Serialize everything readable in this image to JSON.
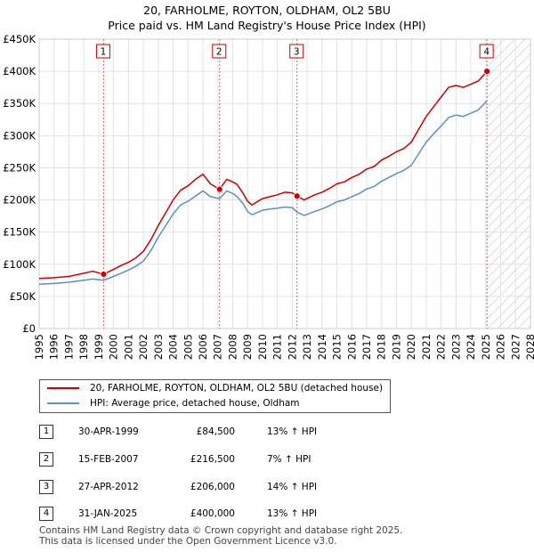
{
  "title_line1": "20, FARHOLME, ROYTON, OLDHAM, OL2 5BU",
  "title_line2": "Price paid vs. HM Land Registry's House Price Index (HPI)",
  "colors": {
    "property": "#cc0000",
    "hpi": "#5b8fc9",
    "grid": "#e3e3e3"
  },
  "chart_data": {
    "type": "line",
    "xlim": [
      1995,
      2028
    ],
    "ylim": [
      0,
      450000
    ],
    "x_ticks": [
      "1995",
      "1996",
      "1997",
      "1998",
      "1999",
      "2000",
      "2001",
      "2002",
      "2003",
      "2004",
      "2005",
      "2006",
      "2007",
      "2008",
      "2009",
      "2010",
      "2011",
      "2012",
      "2013",
      "2014",
      "2015",
      "2016",
      "2017",
      "2018",
      "2019",
      "2020",
      "2021",
      "2022",
      "2023",
      "2024",
      "2025",
      "2026",
      "2027",
      "2028"
    ],
    "y_ticks": [
      {
        "value": 0,
        "label": "£0"
      },
      {
        "value": 50000,
        "label": "£50K"
      },
      {
        "value": 100000,
        "label": "£100K"
      },
      {
        "value": 150000,
        "label": "£150K"
      },
      {
        "value": 200000,
        "label": "£200K"
      },
      {
        "value": 250000,
        "label": "£250K"
      },
      {
        "value": 300000,
        "label": "£300K"
      },
      {
        "value": 350000,
        "label": "£350K"
      },
      {
        "value": 400000,
        "label": "£400K"
      },
      {
        "value": 450000,
        "label": "£450K"
      }
    ],
    "series": [
      {
        "name": "20, FARHOLME, ROYTON, OLDHAM, OL2 5BU (detached house)",
        "color": "#cc0000",
        "x": [
          1995.0,
          1996.0,
          1997.0,
          1998.0,
          1998.6,
          1999.33,
          2000.0,
          2000.5,
          2001.0,
          2001.5,
          2002.0,
          2002.5,
          2003.0,
          2003.5,
          2004.0,
          2004.5,
          2005.0,
          2005.5,
          2006.0,
          2006.5,
          2007.12,
          2007.6,
          2008.0,
          2008.3,
          2008.7,
          2009.0,
          2009.3,
          2009.7,
          2010.0,
          2010.5,
          2011.0,
          2011.5,
          2012.0,
          2012.32,
          2012.8,
          2013.5,
          2014.0,
          2014.5,
          2015.0,
          2015.5,
          2016.0,
          2016.5,
          2017.0,
          2017.5,
          2018.0,
          2018.5,
          2019.0,
          2019.5,
          2020.0,
          2020.5,
          2021.0,
          2021.5,
          2022.0,
          2022.5,
          2023.0,
          2023.5,
          2024.0,
          2024.5,
          2025.08
        ],
        "y": [
          78000,
          79000,
          81000,
          86000,
          89000,
          84500,
          92000,
          98000,
          103000,
          110000,
          120000,
          138000,
          160000,
          180000,
          200000,
          215000,
          222000,
          232000,
          240000,
          225000,
          216500,
          232000,
          228000,
          224000,
          210000,
          198000,
          192000,
          198000,
          202000,
          205000,
          208000,
          212000,
          211000,
          206000,
          200000,
          208000,
          212000,
          218000,
          225000,
          228000,
          235000,
          240000,
          248000,
          252000,
          262000,
          268000,
          275000,
          280000,
          290000,
          310000,
          330000,
          345000,
          360000,
          375000,
          378000,
          375000,
          380000,
          385000,
          400000
        ]
      },
      {
        "name": "HPI: Average price, detached house, Oldham",
        "color": "#5b8fc9",
        "x": [
          1995.0,
          1996.0,
          1997.0,
          1998.0,
          1998.6,
          1999.33,
          2000.0,
          2000.5,
          2001.0,
          2001.5,
          2002.0,
          2002.5,
          2003.0,
          2003.5,
          2004.0,
          2004.5,
          2005.0,
          2005.5,
          2006.0,
          2006.5,
          2007.12,
          2007.6,
          2008.0,
          2008.3,
          2008.7,
          2009.0,
          2009.3,
          2009.7,
          2010.0,
          2010.5,
          2011.0,
          2011.5,
          2012.0,
          2012.32,
          2012.8,
          2013.5,
          2014.0,
          2014.5,
          2015.0,
          2015.5,
          2016.0,
          2016.5,
          2017.0,
          2017.5,
          2018.0,
          2018.5,
          2019.0,
          2019.5,
          2020.0,
          2020.5,
          2021.0,
          2021.5,
          2022.0,
          2022.5,
          2023.0,
          2023.5,
          2024.0,
          2024.5,
          2025.08
        ],
        "y": [
          69000,
          70000,
          72000,
          75000,
          77000,
          75000,
          81000,
          86000,
          91000,
          97000,
          105000,
          121000,
          142000,
          160000,
          178000,
          192000,
          198000,
          206000,
          214000,
          205000,
          202000,
          214000,
          210000,
          205000,
          194000,
          182000,
          177000,
          181000,
          184000,
          186000,
          187000,
          189000,
          188000,
          181000,
          176000,
          182000,
          186000,
          191000,
          197000,
          200000,
          205000,
          210000,
          217000,
          221000,
          229000,
          235000,
          241000,
          246000,
          254000,
          272000,
          290000,
          303000,
          315000,
          328000,
          332000,
          330000,
          335000,
          340000,
          354000
        ]
      }
    ],
    "sales": [
      {
        "n": "1",
        "x": 1999.33,
        "y": 84500
      },
      {
        "n": "2",
        "x": 2007.12,
        "y": 216500
      },
      {
        "n": "3",
        "x": 2012.32,
        "y": 206000
      },
      {
        "n": "4",
        "x": 2025.08,
        "y": 400000
      }
    ],
    "future_hatch_from": 2025.08
  },
  "legend": {
    "property_label": "20, FARHOLME, ROYTON, OLDHAM, OL2 5BU (detached house)",
    "hpi_label": "HPI: Average price, detached house, Oldham"
  },
  "transactions": [
    {
      "n": "1",
      "date": "30-APR-1999",
      "price": "£84,500",
      "hpi": "13% ↑ HPI"
    },
    {
      "n": "2",
      "date": "15-FEB-2007",
      "price": "£216,500",
      "hpi": "7% ↑ HPI"
    },
    {
      "n": "3",
      "date": "27-APR-2012",
      "price": "£206,000",
      "hpi": "14% ↑ HPI"
    },
    {
      "n": "4",
      "date": "31-JAN-2025",
      "price": "£400,000",
      "hpi": "13% ↑ HPI"
    }
  ],
  "footer": {
    "line1": "Contains HM Land Registry data © Crown copyright and database right 2025.",
    "line2": "This data is licensed under the Open Government Licence v3.0."
  }
}
